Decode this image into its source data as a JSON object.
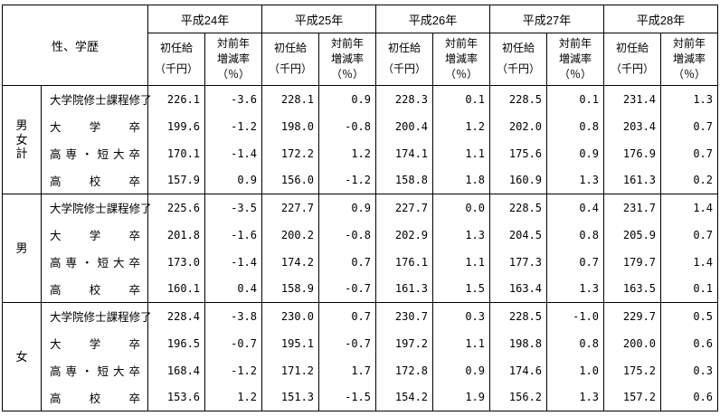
{
  "table": {
    "corner_header": "性、学歴",
    "years": [
      "平成24年",
      "平成25年",
      "平成26年",
      "平成27年",
      "平成28年"
    ],
    "sub_headers": {
      "salary_lines": [
        "初任給",
        "（千円）"
      ],
      "rate_lines": [
        "対前年",
        "増減率",
        "（％）"
      ]
    },
    "groups": [
      {
        "label": "男女計",
        "rows": [
          {
            "education": "大学院修士課程修了",
            "values": [
              "226.1",
              "-3.6",
              "228.1",
              "0.9",
              "228.3",
              "0.1",
              "228.5",
              "0.1",
              "231.4",
              "1.3"
            ]
          },
          {
            "education": "大学卒",
            "values": [
              "199.6",
              "-1.2",
              "198.0",
              "-0.8",
              "200.4",
              "1.2",
              "202.0",
              "0.8",
              "203.4",
              "0.7"
            ]
          },
          {
            "education": "高専・短大卒",
            "values": [
              "170.1",
              "-1.4",
              "172.2",
              "1.2",
              "174.1",
              "1.1",
              "175.6",
              "0.9",
              "176.9",
              "0.7"
            ]
          },
          {
            "education": "高校卒",
            "values": [
              "157.9",
              "0.9",
              "156.0",
              "-1.2",
              "158.8",
              "1.8",
              "160.9",
              "1.3",
              "161.3",
              "0.2"
            ]
          }
        ]
      },
      {
        "label": "男",
        "rows": [
          {
            "education": "大学院修士課程修了",
            "values": [
              "225.6",
              "-3.5",
              "227.7",
              "0.9",
              "227.7",
              "0.0",
              "228.5",
              "0.4",
              "231.7",
              "1.4"
            ]
          },
          {
            "education": "大学卒",
            "values": [
              "201.8",
              "-1.6",
              "200.2",
              "-0.8",
              "202.9",
              "1.3",
              "204.5",
              "0.8",
              "205.9",
              "0.7"
            ]
          },
          {
            "education": "高専・短大卒",
            "values": [
              "173.0",
              "-1.4",
              "174.2",
              "0.7",
              "176.1",
              "1.1",
              "177.3",
              "0.7",
              "179.7",
              "1.4"
            ]
          },
          {
            "education": "高校卒",
            "values": [
              "160.1",
              "0.4",
              "158.9",
              "-0.7",
              "161.3",
              "1.5",
              "163.4",
              "1.3",
              "163.5",
              "0.1"
            ]
          }
        ]
      },
      {
        "label": "女",
        "rows": [
          {
            "education": "大学院修士課程修了",
            "values": [
              "228.4",
              "-3.8",
              "230.0",
              "0.7",
              "230.7",
              "0.3",
              "228.5",
              "-1.0",
              "229.7",
              "0.5"
            ]
          },
          {
            "education": "大学卒",
            "values": [
              "196.5",
              "-0.7",
              "195.1",
              "-0.7",
              "197.2",
              "1.1",
              "198.8",
              "0.8",
              "200.0",
              "0.6"
            ]
          },
          {
            "education": "高専・短大卒",
            "values": [
              "168.4",
              "-1.2",
              "171.2",
              "1.7",
              "172.8",
              "0.9",
              "174.6",
              "1.0",
              "175.2",
              "0.3"
            ]
          },
          {
            "education": "高校卒",
            "values": [
              "153.6",
              "1.2",
              "151.3",
              "-1.5",
              "154.2",
              "1.9",
              "156.2",
              "1.3",
              "157.2",
              "0.6"
            ]
          }
        ]
      }
    ]
  }
}
